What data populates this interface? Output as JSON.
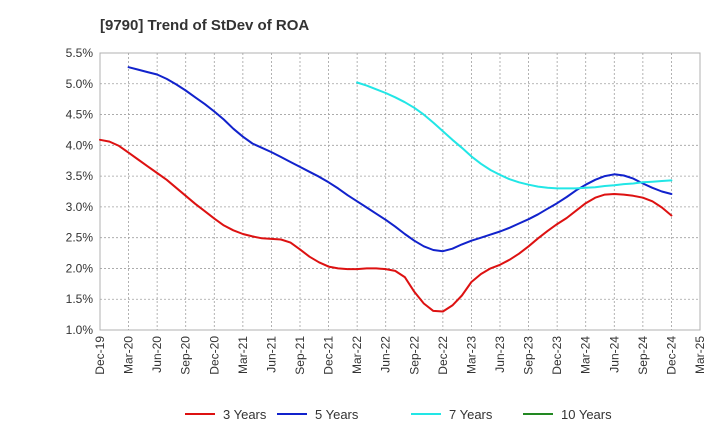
{
  "chart_data": {
    "type": "line",
    "title": "[9790]  Trend of StDev of ROA",
    "xlabel": "",
    "ylabel": "",
    "ylim": [
      1.0,
      5.5
    ],
    "grid": true,
    "legend_placement": "bottom",
    "y_ticks": [
      "1.0%",
      "1.5%",
      "2.0%",
      "2.5%",
      "3.0%",
      "3.5%",
      "4.0%",
      "4.5%",
      "5.0%",
      "5.5%"
    ],
    "x_ticks": [
      "Dec-19",
      "Mar-20",
      "Jun-20",
      "Sep-20",
      "Dec-20",
      "Mar-21",
      "Jun-21",
      "Sep-21",
      "Dec-21",
      "Mar-22",
      "Jun-22",
      "Sep-22",
      "Dec-22",
      "Mar-23",
      "Jun-23",
      "Sep-23",
      "Dec-23",
      "Mar-24",
      "Jun-24",
      "Sep-24",
      "Dec-24",
      "Mar-25"
    ],
    "series": [
      {
        "name": "3 Years",
        "color": "#dd1111",
        "points": [
          [
            "Dec-19",
            4.09
          ],
          [
            "Jan-20",
            4.06
          ],
          [
            "Feb-20",
            3.99
          ],
          [
            "Mar-20",
            3.88
          ],
          [
            "Apr-20",
            3.77
          ],
          [
            "May-20",
            3.66
          ],
          [
            "Jun-20",
            3.55
          ],
          [
            "Jul-20",
            3.44
          ],
          [
            "Aug-20",
            3.31
          ],
          [
            "Sep-20",
            3.18
          ],
          [
            "Oct-20",
            3.05
          ],
          [
            "Nov-20",
            2.93
          ],
          [
            "Dec-20",
            2.81
          ],
          [
            "Jan-21",
            2.7
          ],
          [
            "Feb-21",
            2.62
          ],
          [
            "Mar-21",
            2.56
          ],
          [
            "Apr-21",
            2.52
          ],
          [
            "May-21",
            2.49
          ],
          [
            "Jun-21",
            2.48
          ],
          [
            "Jul-21",
            2.47
          ],
          [
            "Aug-21",
            2.42
          ],
          [
            "Sep-21",
            2.31
          ],
          [
            "Oct-21",
            2.19
          ],
          [
            "Nov-21",
            2.1
          ],
          [
            "Dec-21",
            2.03
          ],
          [
            "Jan-22",
            2.0
          ],
          [
            "Feb-22",
            1.99
          ],
          [
            "Mar-22",
            1.99
          ],
          [
            "Apr-22",
            2.0
          ],
          [
            "May-22",
            2.0
          ],
          [
            "Jun-22",
            1.99
          ],
          [
            "Jul-22",
            1.96
          ],
          [
            "Aug-22",
            1.86
          ],
          [
            "Sep-22",
            1.62
          ],
          [
            "Oct-22",
            1.43
          ],
          [
            "Nov-22",
            1.31
          ],
          [
            "Dec-22",
            1.3
          ],
          [
            "Jan-23",
            1.4
          ],
          [
            "Feb-23",
            1.56
          ],
          [
            "Mar-23",
            1.78
          ],
          [
            "Apr-23",
            1.91
          ],
          [
            "May-23",
            2.0
          ],
          [
            "Jun-23",
            2.06
          ],
          [
            "Jul-23",
            2.14
          ],
          [
            "Aug-23",
            2.24
          ],
          [
            "Sep-23",
            2.36
          ],
          [
            "Oct-23",
            2.49
          ],
          [
            "Nov-23",
            2.61
          ],
          [
            "Dec-23",
            2.72
          ],
          [
            "Jan-24",
            2.82
          ],
          [
            "Feb-24",
            2.94
          ],
          [
            "Mar-24",
            3.06
          ],
          [
            "Apr-24",
            3.15
          ],
          [
            "May-24",
            3.2
          ],
          [
            "Jun-24",
            3.21
          ],
          [
            "Jul-24",
            3.2
          ],
          [
            "Aug-24",
            3.18
          ],
          [
            "Sep-24",
            3.15
          ],
          [
            "Oct-24",
            3.09
          ],
          [
            "Nov-24",
            2.99
          ],
          [
            "Dec-24",
            2.86
          ]
        ]
      },
      {
        "name": "5 Years",
        "color": "#1122cc",
        "points": [
          [
            "Mar-20",
            5.27
          ],
          [
            "Apr-20",
            5.23
          ],
          [
            "May-20",
            5.19
          ],
          [
            "Jun-20",
            5.15
          ],
          [
            "Jul-20",
            5.08
          ],
          [
            "Aug-20",
            4.99
          ],
          [
            "Sep-20",
            4.89
          ],
          [
            "Oct-20",
            4.78
          ],
          [
            "Nov-20",
            4.67
          ],
          [
            "Dec-20",
            4.55
          ],
          [
            "Jan-21",
            4.42
          ],
          [
            "Feb-21",
            4.27
          ],
          [
            "Mar-21",
            4.14
          ],
          [
            "Apr-21",
            4.03
          ],
          [
            "May-21",
            3.96
          ],
          [
            "Jun-21",
            3.89
          ],
          [
            "Jul-21",
            3.81
          ],
          [
            "Aug-21",
            3.73
          ],
          [
            "Sep-21",
            3.65
          ],
          [
            "Oct-21",
            3.57
          ],
          [
            "Nov-21",
            3.49
          ],
          [
            "Dec-21",
            3.4
          ],
          [
            "Jan-22",
            3.3
          ],
          [
            "Feb-22",
            3.19
          ],
          [
            "Mar-22",
            3.09
          ],
          [
            "Apr-22",
            2.99
          ],
          [
            "May-22",
            2.89
          ],
          [
            "Jun-22",
            2.79
          ],
          [
            "Jul-22",
            2.68
          ],
          [
            "Aug-22",
            2.56
          ],
          [
            "Sep-22",
            2.45
          ],
          [
            "Oct-22",
            2.36
          ],
          [
            "Nov-22",
            2.3
          ],
          [
            "Dec-22",
            2.28
          ],
          [
            "Jan-23",
            2.32
          ],
          [
            "Feb-23",
            2.39
          ],
          [
            "Mar-23",
            2.45
          ],
          [
            "Apr-23",
            2.5
          ],
          [
            "May-23",
            2.55
          ],
          [
            "Jun-23",
            2.6
          ],
          [
            "Jul-23",
            2.66
          ],
          [
            "Aug-23",
            2.73
          ],
          [
            "Sep-23",
            2.8
          ],
          [
            "Oct-23",
            2.88
          ],
          [
            "Nov-23",
            2.97
          ],
          [
            "Dec-23",
            3.06
          ],
          [
            "Jan-24",
            3.16
          ],
          [
            "Feb-24",
            3.27
          ],
          [
            "Mar-24",
            3.36
          ],
          [
            "Apr-24",
            3.44
          ],
          [
            "May-24",
            3.5
          ],
          [
            "Jun-24",
            3.53
          ],
          [
            "Jul-24",
            3.51
          ],
          [
            "Aug-24",
            3.46
          ],
          [
            "Sep-24",
            3.38
          ],
          [
            "Oct-24",
            3.31
          ],
          [
            "Nov-24",
            3.25
          ],
          [
            "Dec-24",
            3.21
          ]
        ]
      },
      {
        "name": "7 Years",
        "color": "#22e6e6",
        "points": [
          [
            "Mar-22",
            5.02
          ],
          [
            "Apr-22",
            4.97
          ],
          [
            "May-22",
            4.91
          ],
          [
            "Jun-22",
            4.85
          ],
          [
            "Jul-22",
            4.78
          ],
          [
            "Aug-22",
            4.7
          ],
          [
            "Sep-22",
            4.61
          ],
          [
            "Oct-22",
            4.5
          ],
          [
            "Nov-22",
            4.37
          ],
          [
            "Dec-22",
            4.23
          ],
          [
            "Jan-23",
            4.09
          ],
          [
            "Feb-23",
            3.96
          ],
          [
            "Mar-23",
            3.82
          ],
          [
            "Apr-23",
            3.7
          ],
          [
            "May-23",
            3.6
          ],
          [
            "Jun-23",
            3.52
          ],
          [
            "Jul-23",
            3.45
          ],
          [
            "Aug-23",
            3.4
          ],
          [
            "Sep-23",
            3.36
          ],
          [
            "Oct-23",
            3.33
          ],
          [
            "Nov-23",
            3.31
          ],
          [
            "Dec-23",
            3.3
          ],
          [
            "Jan-24",
            3.3
          ],
          [
            "Feb-24",
            3.3
          ],
          [
            "Mar-24",
            3.31
          ],
          [
            "Apr-24",
            3.32
          ],
          [
            "May-24",
            3.34
          ],
          [
            "Jun-24",
            3.35
          ],
          [
            "Jul-24",
            3.37
          ],
          [
            "Aug-24",
            3.38
          ],
          [
            "Sep-24",
            3.4
          ],
          [
            "Oct-24",
            3.41
          ],
          [
            "Nov-24",
            3.42
          ],
          [
            "Dec-24",
            3.43
          ]
        ]
      },
      {
        "name": "10 Years",
        "color": "#228822",
        "points": []
      }
    ]
  }
}
